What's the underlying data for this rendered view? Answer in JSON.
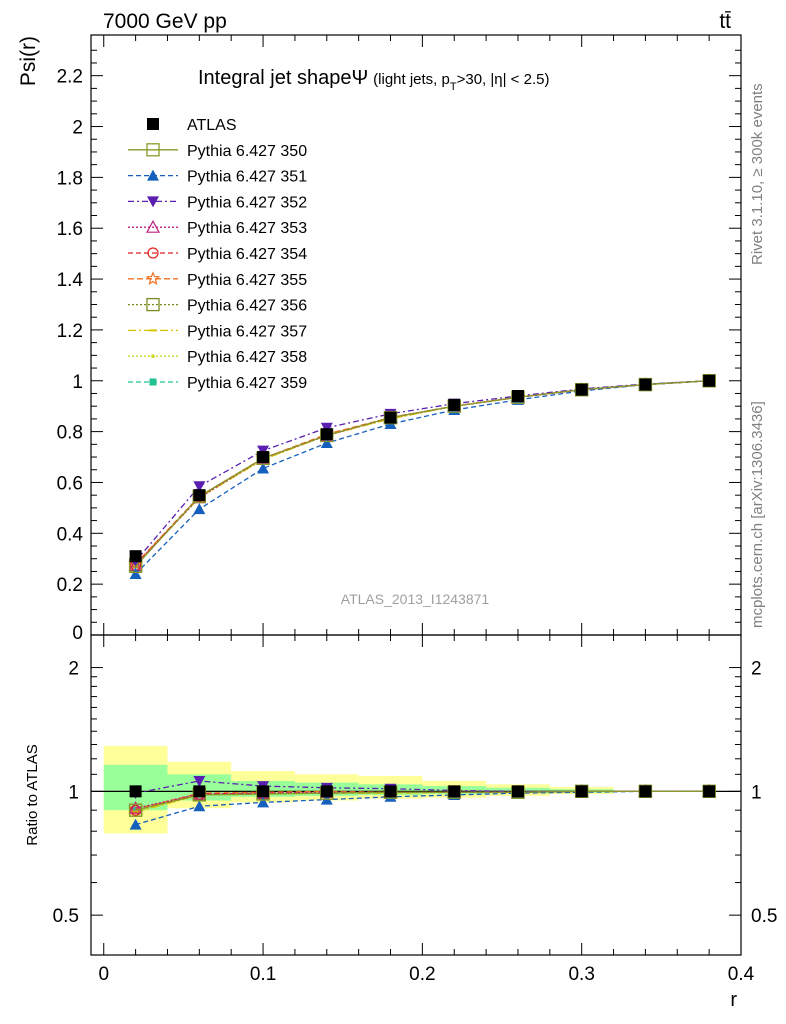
{
  "header": {
    "energy_label": "7000 GeV pp",
    "process_label": "tt̄",
    "side_rivet": "Rivet 3.1.10, ≥ 300k events",
    "side_mcplots": "mcplots.cern.ch [arXiv:1306.3436]",
    "analysis_id": "ATLAS_2013_I1243871"
  },
  "colors": {
    "atlas": "#000000",
    "s350": "#8a9a2a",
    "s351": "#1560bd",
    "s352": "#5a1fb0",
    "s353": "#c0207f",
    "s354": "#e02020",
    "s355": "#f07020",
    "s356": "#7a8a20",
    "s357": "#d8c400",
    "s358": "#c8d820",
    "s359": "#20c090",
    "band_outer": "#ffff99",
    "band_inner": "#99ff99"
  },
  "chart_data": [
    {
      "type": "line",
      "title_main": "Integral jet shape",
      "title_symbol": "Ψ",
      "title_sub": "(light jets, p",
      "title_sub_T": "T",
      "title_sub_rest": ">30, |η| < 2.5)",
      "ylabel": "Psi(r)",
      "xlabel": "r",
      "xlim": [
        -0.008,
        0.4
      ],
      "ylim": [
        0,
        2.36
      ],
      "y_ticks": [
        "0.2",
        "0.4",
        "0.6",
        "0.8",
        "1",
        "1.2",
        "1.4",
        "1.6",
        "1.8",
        "2",
        "2.2"
      ],
      "x": [
        0.02,
        0.06,
        0.1,
        0.14,
        0.18,
        0.22,
        0.26,
        0.3,
        0.34,
        0.38
      ],
      "series": [
        {
          "name": "ATLAS",
          "marker": "square-filled",
          "values": [
            0.31,
            0.55,
            0.7,
            0.79,
            0.855,
            0.905,
            0.94,
            0.965,
            0.985,
            1.0
          ]
        },
        {
          "name": "Pythia 6.427 350",
          "marker": "square-open",
          "values": [
            0.27,
            0.545,
            0.695,
            0.785,
            0.855,
            0.9,
            0.935,
            0.965,
            0.985,
            1.0
          ]
        },
        {
          "name": "Pythia 6.427 351",
          "marker": "triangle-up-filled",
          "values": [
            0.24,
            0.495,
            0.655,
            0.755,
            0.83,
            0.885,
            0.925,
            0.96,
            0.985,
            1.0
          ]
        },
        {
          "name": "Pythia 6.427 352",
          "marker": "triangle-down-filled",
          "values": [
            0.29,
            0.585,
            0.725,
            0.815,
            0.87,
            0.91,
            0.94,
            0.968,
            0.987,
            1.0
          ]
        },
        {
          "name": "Pythia 6.427 353",
          "marker": "triangle-up-open",
          "values": [
            0.275,
            0.54,
            0.695,
            0.785,
            0.855,
            0.9,
            0.935,
            0.965,
            0.985,
            1.0
          ]
        },
        {
          "name": "Pythia 6.427 354",
          "marker": "circle-open",
          "values": [
            0.275,
            0.545,
            0.695,
            0.785,
            0.855,
            0.9,
            0.935,
            0.965,
            0.985,
            1.0
          ]
        },
        {
          "name": "Pythia 6.427 355",
          "marker": "star-open",
          "values": [
            0.28,
            0.545,
            0.695,
            0.79,
            0.855,
            0.9,
            0.935,
            0.965,
            0.985,
            1.0
          ]
        },
        {
          "name": "Pythia 6.427 356",
          "marker": "square-open",
          "values": [
            0.275,
            0.545,
            0.695,
            0.785,
            0.855,
            0.9,
            0.935,
            0.965,
            0.985,
            1.0
          ]
        },
        {
          "name": "Pythia 6.427 357",
          "marker": "dash",
          "values": [
            0.275,
            0.54,
            0.69,
            0.785,
            0.85,
            0.9,
            0.935,
            0.965,
            0.985,
            1.0
          ]
        },
        {
          "name": "Pythia 6.427 358",
          "marker": "dot",
          "values": [
            0.275,
            0.54,
            0.69,
            0.785,
            0.85,
            0.9,
            0.935,
            0.965,
            0.985,
            1.0
          ]
        },
        {
          "name": "Pythia 6.427 359",
          "marker": "square-small",
          "values": [
            0.275,
            0.545,
            0.695,
            0.785,
            0.855,
            0.9,
            0.935,
            0.965,
            0.985,
            1.0
          ]
        }
      ]
    },
    {
      "type": "line",
      "ylabel": "Ratio to ATLAS",
      "xlabel": "r",
      "xlim": [
        -0.008,
        0.4
      ],
      "ylim_log": [
        0.4,
        2.4
      ],
      "y_ticks": [
        "0.5",
        "1",
        "2"
      ],
      "x_ticks": [
        "0",
        "0.1",
        "0.2",
        "0.3",
        "0.4"
      ],
      "bands": [
        {
          "x0": 0.0,
          "x1": 0.04,
          "outer": [
            0.79,
            1.29
          ],
          "inner": [
            0.9,
            1.16
          ]
        },
        {
          "x0": 0.04,
          "x1": 0.08,
          "outer": [
            0.91,
            1.18
          ],
          "inner": [
            0.95,
            1.1
          ]
        },
        {
          "x0": 0.08,
          "x1": 0.12,
          "outer": [
            0.94,
            1.12
          ],
          "inner": [
            0.97,
            1.06
          ]
        },
        {
          "x0": 0.12,
          "x1": 0.16,
          "outer": [
            0.95,
            1.1
          ],
          "inner": [
            0.975,
            1.05
          ]
        },
        {
          "x0": 0.16,
          "x1": 0.2,
          "outer": [
            0.96,
            1.09
          ],
          "inner": [
            0.98,
            1.04
          ]
        },
        {
          "x0": 0.2,
          "x1": 0.24,
          "outer": [
            0.965,
            1.06
          ],
          "inner": [
            0.985,
            1.03
          ]
        },
        {
          "x0": 0.24,
          "x1": 0.28,
          "outer": [
            0.975,
            1.04
          ],
          "inner": [
            0.99,
            1.02
          ]
        },
        {
          "x0": 0.28,
          "x1": 0.32,
          "outer": [
            0.985,
            1.025
          ],
          "inner": [
            0.993,
            1.012
          ]
        }
      ],
      "x": [
        0.02,
        0.06,
        0.1,
        0.14,
        0.18,
        0.22,
        0.26,
        0.3,
        0.34,
        0.38
      ],
      "series": [
        {
          "name": "Pythia 6.427 350",
          "values": [
            0.9,
            0.98,
            0.985,
            0.99,
            0.995,
            0.995,
            0.995,
            1.0,
            1.0,
            1.0
          ]
        },
        {
          "name": "Pythia 6.427 351",
          "values": [
            0.83,
            0.92,
            0.94,
            0.955,
            0.97,
            0.98,
            0.99,
            0.995,
            1.0,
            1.0
          ]
        },
        {
          "name": "Pythia 6.427 352",
          "values": [
            0.99,
            1.06,
            1.03,
            1.02,
            1.015,
            1.005,
            1.0,
            1.0,
            1.0,
            1.0
          ]
        },
        {
          "name": "Pythia 6.427 353",
          "values": [
            0.91,
            0.985,
            0.99,
            0.995,
            0.995,
            0.995,
            0.995,
            1.0,
            1.0,
            1.0
          ]
        },
        {
          "name": "Pythia 6.427 354",
          "values": [
            0.9,
            0.985,
            0.99,
            0.99,
            0.995,
            0.995,
            0.995,
            1.0,
            1.0,
            1.0
          ]
        },
        {
          "name": "Pythia 6.427 355",
          "values": [
            0.905,
            0.99,
            0.995,
            1.0,
            0.995,
            0.995,
            0.995,
            1.0,
            1.0,
            1.0
          ]
        },
        {
          "name": "Pythia 6.427 356",
          "values": [
            0.9,
            0.985,
            0.99,
            0.99,
            0.995,
            0.995,
            0.995,
            1.0,
            1.0,
            1.0
          ]
        },
        {
          "name": "Pythia 6.427 357",
          "values": [
            0.89,
            0.98,
            0.985,
            0.99,
            0.99,
            0.995,
            0.995,
            1.0,
            1.0,
            1.0
          ]
        },
        {
          "name": "Pythia 6.427 358",
          "values": [
            0.89,
            0.98,
            0.985,
            0.99,
            0.99,
            0.995,
            0.995,
            1.0,
            1.0,
            1.0
          ]
        },
        {
          "name": "Pythia 6.427 359",
          "values": [
            0.9,
            0.985,
            0.99,
            0.99,
            0.995,
            0.995,
            0.995,
            1.0,
            1.0,
            1.0
          ]
        }
      ]
    }
  ]
}
